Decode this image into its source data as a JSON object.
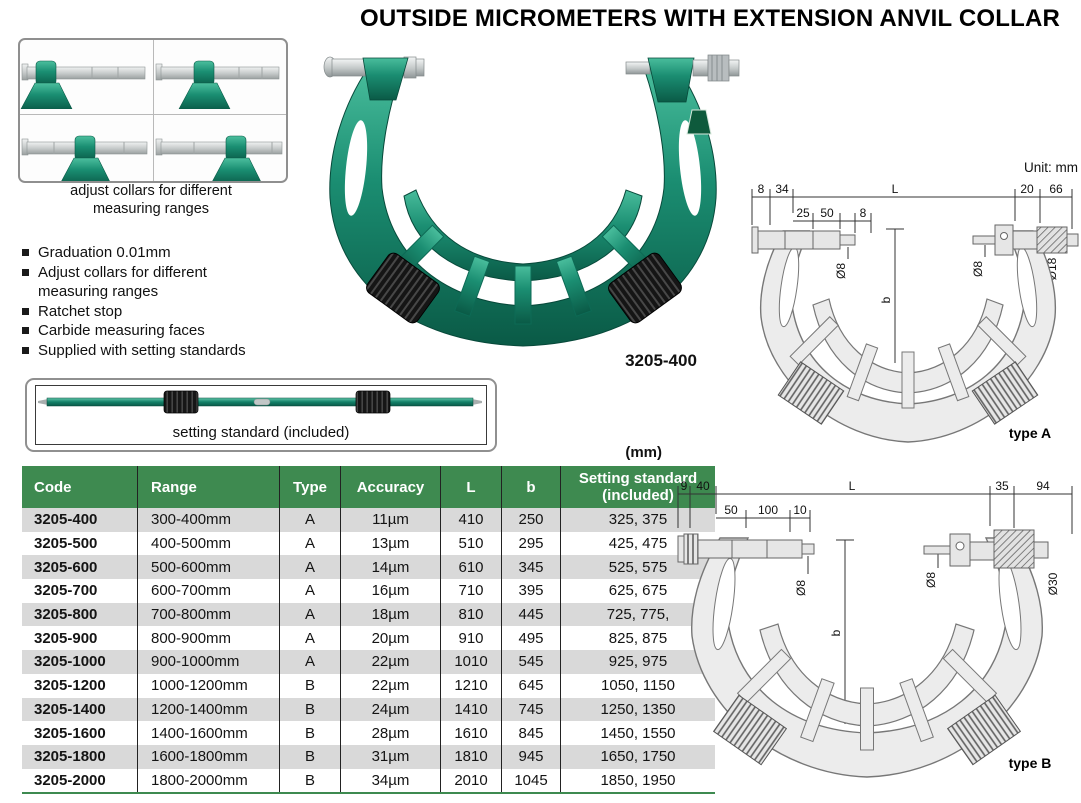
{
  "title": "OUTSIDE MICROMETERS WITH EXTENSION ANVIL COLLAR",
  "adjust_collars": {
    "caption": "adjust collars for different\nmeasuring ranges"
  },
  "features": [
    "Graduation 0.01mm",
    "Adjust collars for different\nmeasuring ranges",
    "Ratchet stop",
    "Carbide measuring faces",
    "Supplied with setting standards"
  ],
  "product": {
    "code": "3205-400"
  },
  "setting_standard": {
    "caption": "setting standard (included)"
  },
  "unit_label": "Unit: mm",
  "type_a": {
    "label": "type A",
    "dims_top": [
      "8",
      "34",
      "L",
      "20",
      "66"
    ],
    "dims_mid": [
      "25",
      "50",
      "8"
    ],
    "dia_left": "Ø8",
    "dia_right": "Ø8",
    "dia_thimble": "Ø18",
    "height_label": "b"
  },
  "type_b": {
    "label": "type B",
    "dims_top": [
      "9",
      "40",
      "L",
      "35",
      "94"
    ],
    "dims_mid": [
      "50",
      "100",
      "10"
    ],
    "dia_left": "Ø8",
    "dia_right": "Ø8",
    "dia_thimble": "Ø30",
    "height_label": "b"
  },
  "table": {
    "unit_note": "(mm)",
    "columns": [
      "Code",
      "Range",
      "Type",
      "Accuracy",
      "L",
      "b",
      "Setting standard (included)"
    ],
    "rows": [
      [
        "3205-400",
        "300-400mm",
        "A",
        "11µm",
        "410",
        "250",
        "325, 375"
      ],
      [
        "3205-500",
        "400-500mm",
        "A",
        "13µm",
        "510",
        "295",
        "425, 475"
      ],
      [
        "3205-600",
        "500-600mm",
        "A",
        "14µm",
        "610",
        "345",
        "525, 575"
      ],
      [
        "3205-700",
        "600-700mm",
        "A",
        "16µm",
        "710",
        "395",
        "625, 675"
      ],
      [
        "3205-800",
        "700-800mm",
        "A",
        "18µm",
        "810",
        "445",
        "725, 775,"
      ],
      [
        "3205-900",
        "800-900mm",
        "A",
        "20µm",
        "910",
        "495",
        "825, 875"
      ],
      [
        "3205-1000",
        "900-1000mm",
        "A",
        "22µm",
        "1010",
        "545",
        "925, 975"
      ],
      [
        "3205-1200",
        "1000-1200mm",
        "B",
        "22µm",
        "1210",
        "645",
        "1050, 1150"
      ],
      [
        "3205-1400",
        "1200-1400mm",
        "B",
        "24µm",
        "1410",
        "745",
        "1250, 1350"
      ],
      [
        "3205-1600",
        "1400-1600mm",
        "B",
        "28µm",
        "1610",
        "845",
        "1450, 1550"
      ],
      [
        "3205-1800",
        "1600-1800mm",
        "B",
        "31µm",
        "1810",
        "945",
        "1650, 1750"
      ],
      [
        "3205-2000",
        "1800-2000mm",
        "B",
        "34µm",
        "2010",
        "1045",
        "1850, 1950"
      ]
    ]
  },
  "colors": {
    "header_green": "#3e8a50",
    "stripe_gray": "#d9d9d9",
    "frame_teal": "#168169"
  }
}
